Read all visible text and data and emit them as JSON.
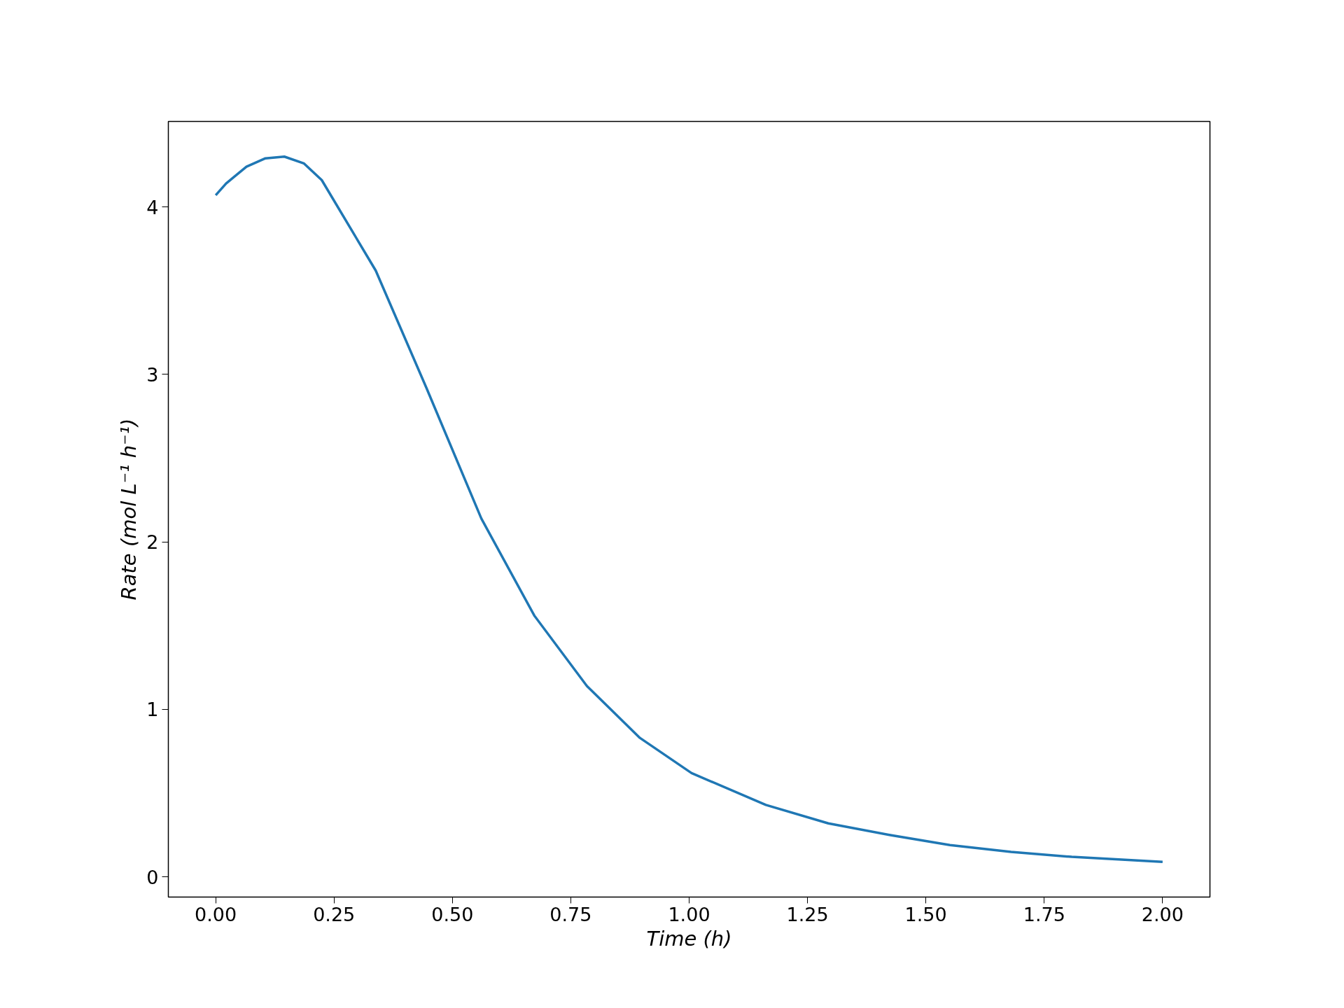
{
  "chart_data": {
    "type": "line",
    "xlabel": "Time (h)",
    "ylabel": "Rate (mol L⁻¹ h⁻¹)",
    "x": [
      0,
      0.022,
      0.065,
      0.105,
      0.145,
      0.186,
      0.224,
      0.338,
      0.445,
      0.561,
      0.673,
      0.784,
      0.896,
      1.005,
      1.162,
      1.294,
      1.425,
      1.551,
      1.68,
      1.808,
      2.0
    ],
    "series": [
      {
        "color": "#1f77b4",
        "values": [
          4.07,
          4.14,
          4.24,
          4.29,
          4.3,
          4.26,
          4.16,
          3.62,
          2.92,
          2.14,
          1.56,
          1.14,
          0.83,
          0.62,
          0.43,
          0.32,
          0.25,
          0.19,
          0.15,
          0.12,
          0.09
        ]
      }
    ],
    "xlim": [
      -0.1,
      2.1
    ],
    "ylim": [
      -0.12,
      4.51
    ],
    "xticks": [
      {
        "value": 0,
        "label": "0.00"
      },
      {
        "value": 0.25,
        "label": "0.25"
      },
      {
        "value": 0.5,
        "label": "0.50"
      },
      {
        "value": 0.75,
        "label": "0.75"
      },
      {
        "value": 1,
        "label": "1.00"
      },
      {
        "value": 1.25,
        "label": "1.25"
      },
      {
        "value": 1.5,
        "label": "1.50"
      },
      {
        "value": 1.75,
        "label": "1.75"
      },
      {
        "value": 2,
        "label": "2.00"
      }
    ],
    "yticks": [
      0,
      1,
      2,
      3,
      4
    ],
    "grid": false,
    "line_style": "solid"
  }
}
